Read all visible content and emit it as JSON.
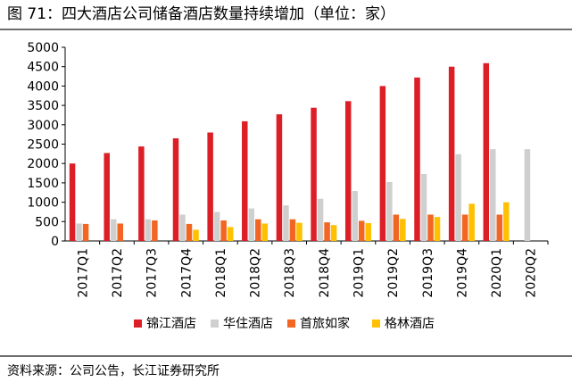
{
  "figure": {
    "title": "图 71：四大酒店公司储备酒店数量持续增加（单位：家）",
    "source": "资料来源：公司公告，长江证券研究所"
  },
  "chart_data": {
    "type": "bar",
    "title": "四大酒店公司储备酒店数量持续增加（单位：家）",
    "xlabel": "",
    "ylabel": "",
    "ylim": [
      0,
      5000
    ],
    "yticks": [
      0,
      500,
      1000,
      1500,
      2000,
      2500,
      3000,
      3500,
      4000,
      4500,
      5000
    ],
    "ytick_labels": [
      "0",
      "500",
      "1000",
      "1500",
      "2000",
      "2500",
      "3000",
      "3500",
      "4000",
      "4500",
      "5000"
    ],
    "grid": false,
    "legend_position": "bottom",
    "categories": [
      "2017Q1",
      "2017Q2",
      "2017Q3",
      "2017Q4",
      "2018Q1",
      "2018Q2",
      "2018Q3",
      "2018Q4",
      "2019Q1",
      "2019Q2",
      "2019Q3",
      "2019Q4",
      "2020Q1",
      "2020Q2"
    ],
    "series": [
      {
        "name": "锦江酒店",
        "color": "#dc1f26",
        "values": [
          2000,
          2270,
          2440,
          2650,
          2800,
          3090,
          3270,
          3440,
          3610,
          4000,
          4220,
          4500,
          4590,
          null
        ]
      },
      {
        "name": "华住酒店",
        "color": "#cfcfcf",
        "values": [
          450,
          560,
          560,
          680,
          750,
          840,
          920,
          1090,
          1290,
          1520,
          1730,
          2240,
          2370,
          2370
        ]
      },
      {
        "name": "首旅如家",
        "color": "#f26522",
        "values": [
          440,
          450,
          530,
          440,
          530,
          560,
          560,
          480,
          520,
          680,
          680,
          680,
          680,
          null
        ]
      },
      {
        "name": "格林酒店",
        "color": "#ffc000",
        "values": [
          null,
          null,
          null,
          290,
          360,
          450,
          470,
          410,
          460,
          570,
          620,
          960,
          1000,
          null
        ]
      }
    ]
  }
}
